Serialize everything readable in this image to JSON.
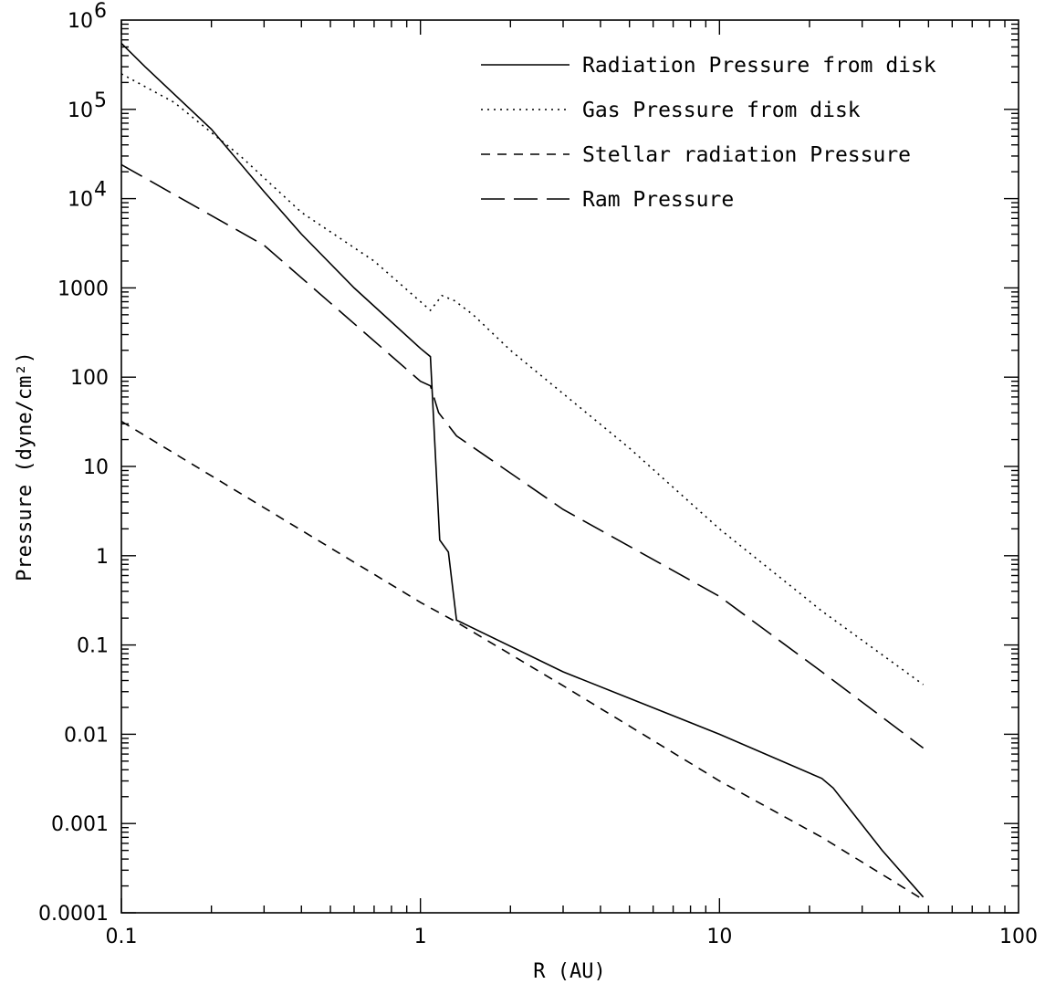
{
  "chart_data": {
    "type": "line",
    "xlabel": "R (AU)",
    "ylabel": "Pressure (dyne/cm²)",
    "xscale": "log",
    "yscale": "log",
    "xlim": [
      0.1,
      100
    ],
    "ylim": [
      0.0001,
      1000000
    ],
    "legend_position": "top-right",
    "grid": false,
    "x_tick_labels": [
      {
        "value": 0.1,
        "label": "0.1"
      },
      {
        "value": 1,
        "label": "1"
      },
      {
        "value": 10,
        "label": "10"
      },
      {
        "value": 100,
        "label": "100"
      }
    ],
    "y_tick_labels": [
      {
        "value": 0.0001,
        "label": "0.0001"
      },
      {
        "value": 0.001,
        "label": "0.001"
      },
      {
        "value": 0.01,
        "label": "0.01"
      },
      {
        "value": 0.1,
        "label": "0.1"
      },
      {
        "value": 1,
        "label": "1"
      },
      {
        "value": 10,
        "label": "10"
      },
      {
        "value": 100,
        "label": "100"
      },
      {
        "value": 1000,
        "label": "1000"
      },
      {
        "value": 10000,
        "label": "10",
        "exp": "4"
      },
      {
        "value": 100000,
        "label": "10",
        "exp": "5"
      },
      {
        "value": 1000000,
        "label": "10",
        "exp": "6"
      }
    ],
    "series": [
      {
        "name": "Radiation Pressure from disk",
        "dash": "solid",
        "points": [
          [
            0.1,
            550000
          ],
          [
            0.12,
            300000
          ],
          [
            0.2,
            60000
          ],
          [
            0.3,
            12000
          ],
          [
            0.4,
            4000
          ],
          [
            0.6,
            1000
          ],
          [
            1.0,
            210
          ],
          [
            1.08,
            170
          ],
          [
            1.16,
            1.5
          ],
          [
            1.24,
            1.1
          ],
          [
            1.32,
            0.19
          ],
          [
            3.0,
            0.05
          ],
          [
            10.0,
            0.01
          ],
          [
            22.0,
            0.0032
          ],
          [
            24.0,
            0.0025
          ],
          [
            35.0,
            0.0005
          ],
          [
            48.0,
            0.00015
          ]
        ]
      },
      {
        "name": "Gas Pressure from disk",
        "dash": "dotted",
        "points": [
          [
            0.1,
            250000
          ],
          [
            0.15,
            120000
          ],
          [
            0.25,
            30000
          ],
          [
            0.4,
            7000
          ],
          [
            0.7,
            2000
          ],
          [
            1.08,
            560
          ],
          [
            1.18,
            820
          ],
          [
            1.3,
            720
          ],
          [
            1.5,
            500
          ],
          [
            2.0,
            200
          ],
          [
            5.0,
            16
          ],
          [
            10.0,
            2.0
          ],
          [
            22.0,
            0.24
          ],
          [
            48.0,
            0.036
          ]
        ]
      },
      {
        "name": "Stellar radiation Pressure",
        "dash": "short-dash",
        "points": [
          [
            0.1,
            32
          ],
          [
            1.0,
            0.3
          ],
          [
            1.32,
            0.18
          ],
          [
            3.0,
            0.035
          ],
          [
            10.0,
            0.003
          ],
          [
            22.0,
            0.0007
          ],
          [
            48.0,
            0.00014
          ]
        ]
      },
      {
        "name": "Ram Pressure",
        "dash": "long-dash",
        "points": [
          [
            0.1,
            24000
          ],
          [
            0.3,
            3000
          ],
          [
            1.0,
            90
          ],
          [
            1.08,
            80
          ],
          [
            1.15,
            40
          ],
          [
            1.32,
            22
          ],
          [
            3.0,
            3.3
          ],
          [
            10.0,
            0.35
          ],
          [
            22.0,
            0.05
          ],
          [
            48.0,
            0.007
          ]
        ]
      }
    ]
  }
}
